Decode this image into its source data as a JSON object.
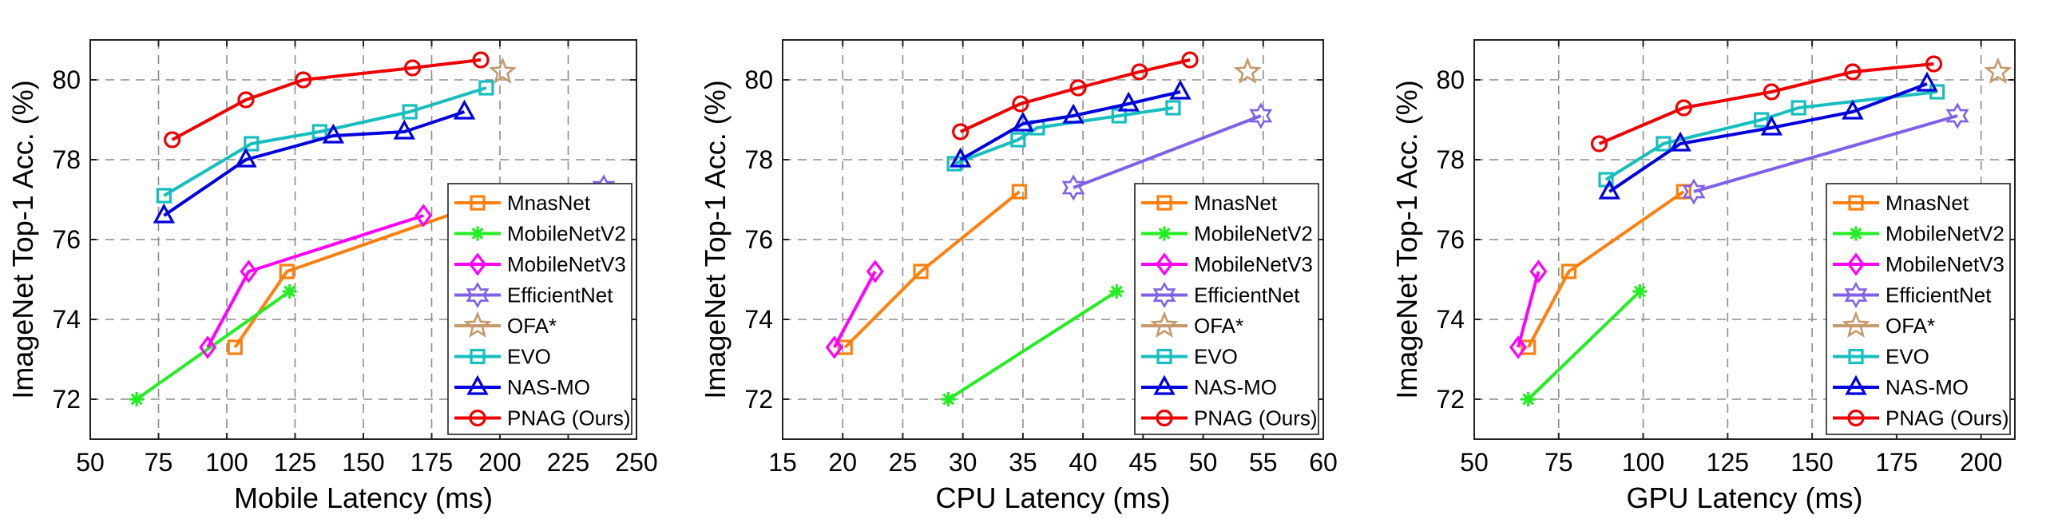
{
  "chart_data": [
    {
      "type": "line",
      "xlabel": "Mobile Latency (ms)",
      "ylabel": "ImageNet Top-1 Acc. (%)",
      "xlim": [
        50,
        250
      ],
      "ylim": [
        71,
        81
      ],
      "xticks": [
        50,
        75,
        100,
        125,
        150,
        175,
        200,
        225,
        250
      ],
      "yticks": [
        72,
        74,
        76,
        78,
        80
      ],
      "grid": true,
      "legend_position": "bottom-right",
      "series": [
        {
          "name": "MnasNet",
          "color": "#ff7f0e",
          "marker": "square",
          "points": [
            [
              103,
              73.3
            ],
            [
              122,
              75.2
            ],
            [
              206,
              77.2
            ]
          ]
        },
        {
          "name": "MobileNetV2",
          "color": "#22ee22",
          "marker": "asterisk",
          "points": [
            [
              67,
              72.0
            ],
            [
              123,
              74.7
            ]
          ]
        },
        {
          "name": "MobileNetV3",
          "color": "#ff00ff",
          "marker": "diamond",
          "points": [
            [
              93,
              73.3
            ],
            [
              108,
              75.2
            ],
            [
              172,
              76.6
            ]
          ]
        },
        {
          "name": "EfficientNet",
          "color": "#8060e8",
          "marker": "hexagram",
          "points": [
            [
              238,
              77.3
            ]
          ]
        },
        {
          "name": "OFA*",
          "color": "#c49a6c",
          "marker": "pentagram",
          "points": [
            [
              201,
              80.2
            ]
          ]
        },
        {
          "name": "EVO",
          "color": "#17bebe",
          "marker": "square",
          "points": [
            [
              77,
              77.1
            ],
            [
              109,
              78.4
            ],
            [
              134,
              78.7
            ],
            [
              167,
              79.2
            ],
            [
              195,
              79.8
            ]
          ]
        },
        {
          "name": "NAS-MO",
          "color": "#0000dd",
          "marker": "triangle",
          "points": [
            [
              77,
              76.6
            ],
            [
              107,
              78.0
            ],
            [
              139,
              78.6
            ],
            [
              165,
              78.7
            ],
            [
              187,
              79.2
            ]
          ]
        },
        {
          "name": "PNAG (Ours)",
          "color": "#ee0000",
          "marker": "circle",
          "points": [
            [
              80,
              78.5
            ],
            [
              107,
              79.5
            ],
            [
              128,
              80.0
            ],
            [
              168,
              80.3
            ],
            [
              193,
              80.5
            ]
          ]
        }
      ]
    },
    {
      "type": "line",
      "xlabel": "CPU Latency (ms)",
      "ylabel": "ImageNet Top-1 Acc. (%)",
      "xlim": [
        15,
        60
      ],
      "ylim": [
        71,
        81
      ],
      "xticks": [
        15,
        20,
        25,
        30,
        35,
        40,
        45,
        50,
        55,
        60
      ],
      "yticks": [
        72,
        74,
        76,
        78,
        80
      ],
      "grid": true,
      "legend_position": "bottom-right",
      "series": [
        {
          "name": "MnasNet",
          "color": "#ff7f0e",
          "marker": "square",
          "points": [
            [
              20.2,
              73.3
            ],
            [
              26.5,
              75.2
            ],
            [
              34.7,
              77.2
            ]
          ]
        },
        {
          "name": "MobileNetV2",
          "color": "#22ee22",
          "marker": "asterisk",
          "points": [
            [
              28.8,
              72.0
            ],
            [
              42.8,
              74.7
            ]
          ]
        },
        {
          "name": "MobileNetV3",
          "color": "#ff00ff",
          "marker": "diamond",
          "points": [
            [
              19.3,
              73.3
            ],
            [
              22.7,
              75.2
            ]
          ]
        },
        {
          "name": "EfficientNet",
          "color": "#8060e8",
          "marker": "hexagram",
          "points": [
            [
              39.2,
              77.3
            ],
            [
              54.8,
              79.1
            ]
          ]
        },
        {
          "name": "OFA*",
          "color": "#c49a6c",
          "marker": "pentagram",
          "points": [
            [
              53.7,
              80.2
            ]
          ]
        },
        {
          "name": "EVO",
          "color": "#17bebe",
          "marker": "square",
          "points": [
            [
              29.3,
              77.9
            ],
            [
              34.6,
              78.5
            ],
            [
              36.2,
              78.8
            ],
            [
              43.0,
              79.1
            ],
            [
              47.5,
              79.3
            ]
          ]
        },
        {
          "name": "NAS-MO",
          "color": "#0000dd",
          "marker": "triangle",
          "points": [
            [
              29.8,
              78.0
            ],
            [
              35.0,
              78.9
            ],
            [
              39.2,
              79.1
            ],
            [
              43.8,
              79.4
            ],
            [
              48.1,
              79.7
            ]
          ]
        },
        {
          "name": "PNAG (Ours)",
          "color": "#ee0000",
          "marker": "circle",
          "points": [
            [
              29.8,
              78.7
            ],
            [
              34.8,
              79.4
            ],
            [
              39.6,
              79.8
            ],
            [
              44.7,
              80.2
            ],
            [
              48.9,
              80.5
            ]
          ]
        }
      ]
    },
    {
      "type": "line",
      "xlabel": "GPU Latency (ms)",
      "ylabel": "ImageNet Top-1 Acc. (%)",
      "xlim": [
        50,
        210
      ],
      "ylim": [
        71,
        81
      ],
      "xticks": [
        50,
        75,
        100,
        125,
        150,
        175,
        200
      ],
      "yticks": [
        72,
        74,
        76,
        78,
        80
      ],
      "grid": true,
      "legend_position": "bottom-right",
      "series": [
        {
          "name": "MnasNet",
          "color": "#ff7f0e",
          "marker": "square",
          "points": [
            [
              66,
              73.3
            ],
            [
              78,
              75.2
            ],
            [
              112,
              77.2
            ]
          ]
        },
        {
          "name": "MobileNetV2",
          "color": "#22ee22",
          "marker": "asterisk",
          "points": [
            [
              66,
              72.0
            ],
            [
              99,
              74.7
            ]
          ]
        },
        {
          "name": "MobileNetV3",
          "color": "#ff00ff",
          "marker": "diamond",
          "points": [
            [
              63,
              73.3
            ],
            [
              69,
              75.2
            ]
          ]
        },
        {
          "name": "EfficientNet",
          "color": "#8060e8",
          "marker": "hexagram",
          "points": [
            [
              115,
              77.2
            ],
            [
              193,
              79.1
            ]
          ]
        },
        {
          "name": "OFA*",
          "color": "#c49a6c",
          "marker": "pentagram",
          "points": [
            [
              205,
              80.2
            ]
          ]
        },
        {
          "name": "EVO",
          "color": "#17bebe",
          "marker": "square",
          "points": [
            [
              89,
              77.5
            ],
            [
              106,
              78.4
            ],
            [
              135,
              79.0
            ],
            [
              146,
              79.3
            ],
            [
              187,
              79.7
            ]
          ]
        },
        {
          "name": "NAS-MO",
          "color": "#0000dd",
          "marker": "triangle",
          "points": [
            [
              90,
              77.2
            ],
            [
              111,
              78.4
            ],
            [
              138,
              78.8
            ],
            [
              162,
              79.2
            ],
            [
              184,
              79.9
            ]
          ]
        },
        {
          "name": "PNAG (Ours)",
          "color": "#ee0000",
          "marker": "circle",
          "points": [
            [
              87,
              78.4
            ],
            [
              112,
              79.3
            ],
            [
              138,
              79.7
            ],
            [
              162,
              80.2
            ],
            [
              186,
              80.4
            ]
          ]
        }
      ]
    }
  ]
}
